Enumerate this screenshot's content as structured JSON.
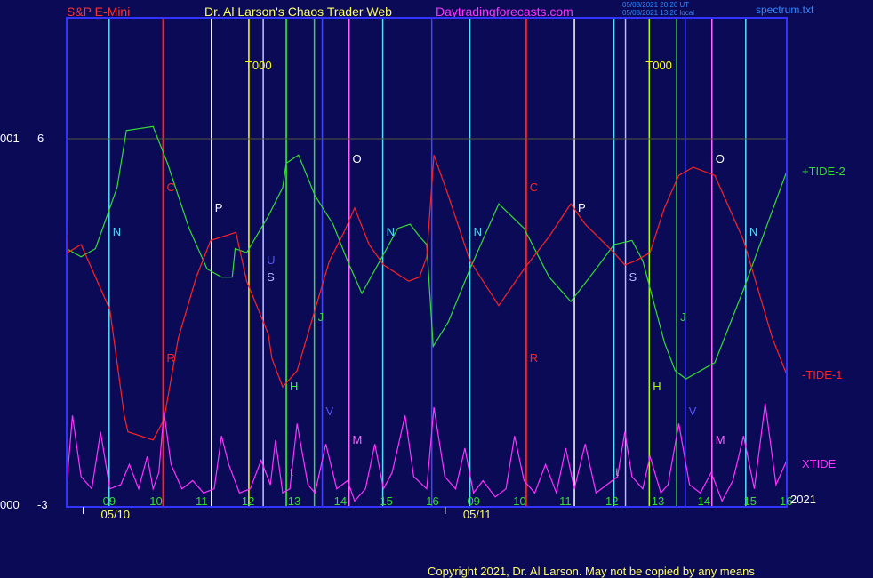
{
  "header": {
    "symbol": "S&P E-Mini",
    "author": "Dr. Al Larson's Chaos Trader Web",
    "site": "Daytradingforecasts.com",
    "time_utc": "05/08/2021 20:20 UT",
    "time_local": "05/08/2021 13:20 local",
    "file": "spectrum.txt"
  },
  "footer": {
    "copyright": "Copyright 2021, Dr. Al Larson. May not be copied by any means"
  },
  "colors": {
    "background": "#0a0a56",
    "tide2": "#33dd33",
    "tide1": "#ff2222",
    "xtide": "#ff33ff",
    "frame": "#3333ff"
  },
  "chart_data": {
    "type": "line",
    "ylim": [
      -3,
      6
    ],
    "y_ticks": [
      {
        "prefix": "001",
        "label": "6",
        "value": 6
      },
      {
        "prefix": "000",
        "label": "-3",
        "value": -3
      }
    ],
    "x_range": [
      0,
      1
    ],
    "x_ticks": [
      {
        "label": "09",
        "x": 0.06
      },
      {
        "label": "10",
        "x": 0.125
      },
      {
        "label": "11",
        "x": 0.189
      },
      {
        "label": "12",
        "x": 0.253
      },
      {
        "label": "13",
        "x": 0.317
      },
      {
        "label": "14",
        "x": 0.381
      },
      {
        "label": "15",
        "x": 0.445
      },
      {
        "label": "16",
        "x": 0.509
      },
      {
        "label": "09",
        "x": 0.566
      },
      {
        "label": "10",
        "x": 0.63
      },
      {
        "label": "11",
        "x": 0.694
      },
      {
        "label": "12",
        "x": 0.758
      },
      {
        "label": "13",
        "x": 0.822
      },
      {
        "label": "14",
        "x": 0.886
      },
      {
        "label": "15",
        "x": 0.95
      },
      {
        "label": "16",
        "x": 1.0
      }
    ],
    "date_labels": [
      {
        "label": "05/10",
        "x": 0.05
      },
      {
        "label": "05/11",
        "x": 0.553
      }
    ],
    "year_label": "2021",
    "vlines": [
      {
        "x": 0.059,
        "color": "#55ddff",
        "label": "N",
        "label_y": 3.7
      },
      {
        "x": 0.134,
        "color": "#ff2222",
        "label": "C",
        "label_y": 4.8
      },
      {
        "x": 0.134,
        "color": "#ff2222",
        "label": "R",
        "label_y": 0.6
      },
      {
        "x": 0.201,
        "color": "#ffffff",
        "label": "P",
        "label_y": 4.3
      },
      {
        "x": 0.253,
        "color": "#ffff00",
        "label": "T000",
        "label_y": 7.8
      },
      {
        "x": 0.273,
        "color": "#4444ff",
        "label": "U",
        "label_y": 3.0
      },
      {
        "x": 0.273,
        "color": "#bbbbff",
        "label": "S",
        "label_y": 2.6
      },
      {
        "x": 0.305,
        "color": "#33ff33",
        "label": "H",
        "label_y": -0.1
      },
      {
        "x": 0.344,
        "color": "#33dd33",
        "label": "J",
        "label_y": 1.6
      },
      {
        "x": 0.355,
        "color": "#4444ff",
        "label": "V",
        "label_y": -0.7
      },
      {
        "x": 0.392,
        "color": "#ffffff",
        "label": "O",
        "label_y": 5.5
      },
      {
        "x": 0.392,
        "color": "#ff66ff",
        "label": "M",
        "label_y": -1.4
      },
      {
        "x": 0.439,
        "color": "#55ddff",
        "label": "N",
        "label_y": 3.7
      },
      {
        "x": 0.507,
        "color": "#4444ff",
        "label": "",
        "label_y": 0
      },
      {
        "x": 0.56,
        "color": "#55ddff",
        "label": "N",
        "label_y": 3.7
      },
      {
        "x": 0.638,
        "color": "#ff2222",
        "label": "C",
        "label_y": 4.8
      },
      {
        "x": 0.638,
        "color": "#ff2222",
        "label": "R",
        "label_y": 0.6
      },
      {
        "x": 0.705,
        "color": "#ffffff",
        "label": "P",
        "label_y": 4.3
      },
      {
        "x": 0.76,
        "color": "#55ddff",
        "label": "",
        "label_y": 0
      },
      {
        "x": 0.776,
        "color": "#bbbbff",
        "label": "S",
        "label_y": 2.6
      },
      {
        "x": 0.809,
        "color": "#aaff00",
        "label": "T000",
        "label_y": 7.8
      },
      {
        "x": 0.809,
        "color": "#aaff00",
        "label": "H",
        "label_y": -0.1
      },
      {
        "x": 0.847,
        "color": "#33dd33",
        "label": "J",
        "label_y": 1.6
      },
      {
        "x": 0.859,
        "color": "#4444ff",
        "label": "V",
        "label_y": -0.7
      },
      {
        "x": 0.896,
        "color": "#ffffff",
        "label": "O",
        "label_y": 5.5
      },
      {
        "x": 0.896,
        "color": "#ff66ff",
        "label": "M",
        "label_y": -1.4
      },
      {
        "x": 0.943,
        "color": "#55ddff",
        "label": "N",
        "label_y": 3.7
      }
    ],
    "extra_labels": [
      {
        "text": "t",
        "x": 0.31,
        "y": -2.2,
        "color": "#aaaaaa"
      },
      {
        "text": "t",
        "x": 0.762,
        "y": -2.2,
        "color": "#aaaaaa"
      }
    ],
    "series": [
      {
        "name": "+TIDE-2",
        "color": "#33dd33",
        "label_y": 5.2,
        "points": [
          [
            0,
            3.3
          ],
          [
            0.02,
            3.1
          ],
          [
            0.04,
            3.3
          ],
          [
            0.07,
            4.8
          ],
          [
            0.083,
            6.2
          ],
          [
            0.12,
            6.3
          ],
          [
            0.14,
            5.4
          ],
          [
            0.17,
            3.8
          ],
          [
            0.195,
            2.8
          ],
          [
            0.215,
            2.6
          ],
          [
            0.23,
            2.6
          ],
          [
            0.234,
            3.3
          ],
          [
            0.25,
            3.2
          ],
          [
            0.28,
            4.1
          ],
          [
            0.3,
            4.8
          ],
          [
            0.305,
            5.4
          ],
          [
            0.322,
            5.6
          ],
          [
            0.345,
            4.6
          ],
          [
            0.37,
            3.9
          ],
          [
            0.39,
            3.0
          ],
          [
            0.41,
            2.2
          ],
          [
            0.435,
            3.0
          ],
          [
            0.46,
            3.8
          ],
          [
            0.477,
            3.9
          ],
          [
            0.49,
            3.6
          ],
          [
            0.5,
            3.4
          ],
          [
            0.509,
            0.9
          ],
          [
            0.53,
            1.5
          ],
          [
            0.56,
            2.8
          ],
          [
            0.6,
            4.4
          ],
          [
            0.635,
            3.8
          ],
          [
            0.67,
            2.6
          ],
          [
            0.7,
            2.0
          ],
          [
            0.735,
            2.8
          ],
          [
            0.76,
            3.4
          ],
          [
            0.785,
            3.5
          ],
          [
            0.8,
            3.0
          ],
          [
            0.815,
            2.0
          ],
          [
            0.83,
            1.0
          ],
          [
            0.845,
            0.3
          ],
          [
            0.86,
            0.1
          ],
          [
            0.9,
            0.5
          ],
          [
            0.94,
            2.3
          ],
          [
            0.975,
            4.0
          ],
          [
            1.0,
            5.2
          ]
        ]
      },
      {
        "name": "-TIDE-1",
        "color": "#ff2222",
        "label_y": 0.2,
        "points": [
          [
            0,
            4.7
          ],
          [
            0.001,
            3.2
          ],
          [
            0.02,
            3.4
          ],
          [
            0.04,
            2.6
          ],
          [
            0.06,
            1.8
          ],
          [
            0.08,
            -0.8
          ],
          [
            0.085,
            -1.2
          ],
          [
            0.12,
            -1.4
          ],
          [
            0.135,
            -0.9
          ],
          [
            0.155,
            1.1
          ],
          [
            0.18,
            2.6
          ],
          [
            0.2,
            3.5
          ],
          [
            0.235,
            3.7
          ],
          [
            0.25,
            2.5
          ],
          [
            0.28,
            1.2
          ],
          [
            0.285,
            0.6
          ],
          [
            0.3,
            -0.1
          ],
          [
            0.32,
            0.3
          ],
          [
            0.345,
            1.8
          ],
          [
            0.365,
            3.0
          ],
          [
            0.385,
            3.7
          ],
          [
            0.4,
            4.3
          ],
          [
            0.42,
            3.4
          ],
          [
            0.44,
            2.9
          ],
          [
            0.475,
            2.5
          ],
          [
            0.49,
            2.6
          ],
          [
            0.5,
            3.1
          ],
          [
            0.51,
            5.6
          ],
          [
            0.53,
            4.6
          ],
          [
            0.56,
            3.0
          ],
          [
            0.6,
            1.9
          ],
          [
            0.635,
            2.8
          ],
          [
            0.67,
            3.6
          ],
          [
            0.7,
            4.4
          ],
          [
            0.72,
            3.9
          ],
          [
            0.76,
            3.2
          ],
          [
            0.775,
            2.9
          ],
          [
            0.79,
            3.0
          ],
          [
            0.81,
            3.2
          ],
          [
            0.83,
            4.3
          ],
          [
            0.85,
            5.1
          ],
          [
            0.87,
            5.3
          ],
          [
            0.9,
            5.1
          ],
          [
            0.94,
            3.5
          ],
          [
            0.98,
            1.1
          ],
          [
            1.0,
            0.2
          ]
        ]
      },
      {
        "name": "XTIDE",
        "color": "#ff33ff",
        "label_y": -2.0,
        "points": [
          [
            0,
            -2.5
          ],
          [
            0.008,
            -0.8
          ],
          [
            0.02,
            -2.3
          ],
          [
            0.035,
            -2.6
          ],
          [
            0.047,
            -1.2
          ],
          [
            0.06,
            -2.6
          ],
          [
            0.075,
            -2.5
          ],
          [
            0.087,
            -2.0
          ],
          [
            0.1,
            -2.6
          ],
          [
            0.112,
            -1.8
          ],
          [
            0.12,
            -2.6
          ],
          [
            0.128,
            -2.2
          ],
          [
            0.135,
            -0.7
          ],
          [
            0.145,
            -2.0
          ],
          [
            0.16,
            -2.6
          ],
          [
            0.175,
            -2.4
          ],
          [
            0.19,
            -2.7
          ],
          [
            0.205,
            -2.6
          ],
          [
            0.215,
            -1.3
          ],
          [
            0.225,
            -2.0
          ],
          [
            0.24,
            -2.7
          ],
          [
            0.255,
            -2.6
          ],
          [
            0.27,
            -1.9
          ],
          [
            0.283,
            -2.5
          ],
          [
            0.29,
            -1.4
          ],
          [
            0.3,
            -2.7
          ],
          [
            0.31,
            -2.6
          ],
          [
            0.32,
            -1.0
          ],
          [
            0.335,
            -2.5
          ],
          [
            0.345,
            -2.7
          ],
          [
            0.36,
            -1.5
          ],
          [
            0.375,
            -2.6
          ],
          [
            0.39,
            -2.4
          ],
          [
            0.4,
            -2.9
          ],
          [
            0.415,
            -2.6
          ],
          [
            0.428,
            -1.5
          ],
          [
            0.44,
            -2.6
          ],
          [
            0.452,
            -2.2
          ],
          [
            0.47,
            -0.8
          ],
          [
            0.482,
            -2.3
          ],
          [
            0.5,
            -2.6
          ],
          [
            0.51,
            -0.6
          ],
          [
            0.525,
            -2.3
          ],
          [
            0.54,
            -2.6
          ],
          [
            0.553,
            -1.6
          ],
          [
            0.565,
            -2.7
          ],
          [
            0.578,
            -2.4
          ],
          [
            0.595,
            -2.8
          ],
          [
            0.61,
            -2.6
          ],
          [
            0.622,
            -1.3
          ],
          [
            0.635,
            -2.4
          ],
          [
            0.65,
            -2.7
          ],
          [
            0.665,
            -2.0
          ],
          [
            0.68,
            -2.7
          ],
          [
            0.693,
            -1.6
          ],
          [
            0.705,
            -2.6
          ],
          [
            0.72,
            -1.5
          ],
          [
            0.735,
            -2.7
          ],
          [
            0.75,
            -2.5
          ],
          [
            0.765,
            -2.3
          ],
          [
            0.775,
            -1.2
          ],
          [
            0.785,
            -2.3
          ],
          [
            0.8,
            -2.6
          ],
          [
            0.81,
            -1.8
          ],
          [
            0.825,
            -2.7
          ],
          [
            0.835,
            -2.5
          ],
          [
            0.85,
            -1.0
          ],
          [
            0.865,
            -2.5
          ],
          [
            0.88,
            -2.7
          ],
          [
            0.895,
            -2.2
          ],
          [
            0.91,
            -2.9
          ],
          [
            0.925,
            -2.4
          ],
          [
            0.94,
            -1.3
          ],
          [
            0.955,
            -2.6
          ],
          [
            0.97,
            -0.5
          ],
          [
            0.985,
            -2.5
          ],
          [
            1.0,
            -1.9
          ]
        ]
      }
    ]
  }
}
